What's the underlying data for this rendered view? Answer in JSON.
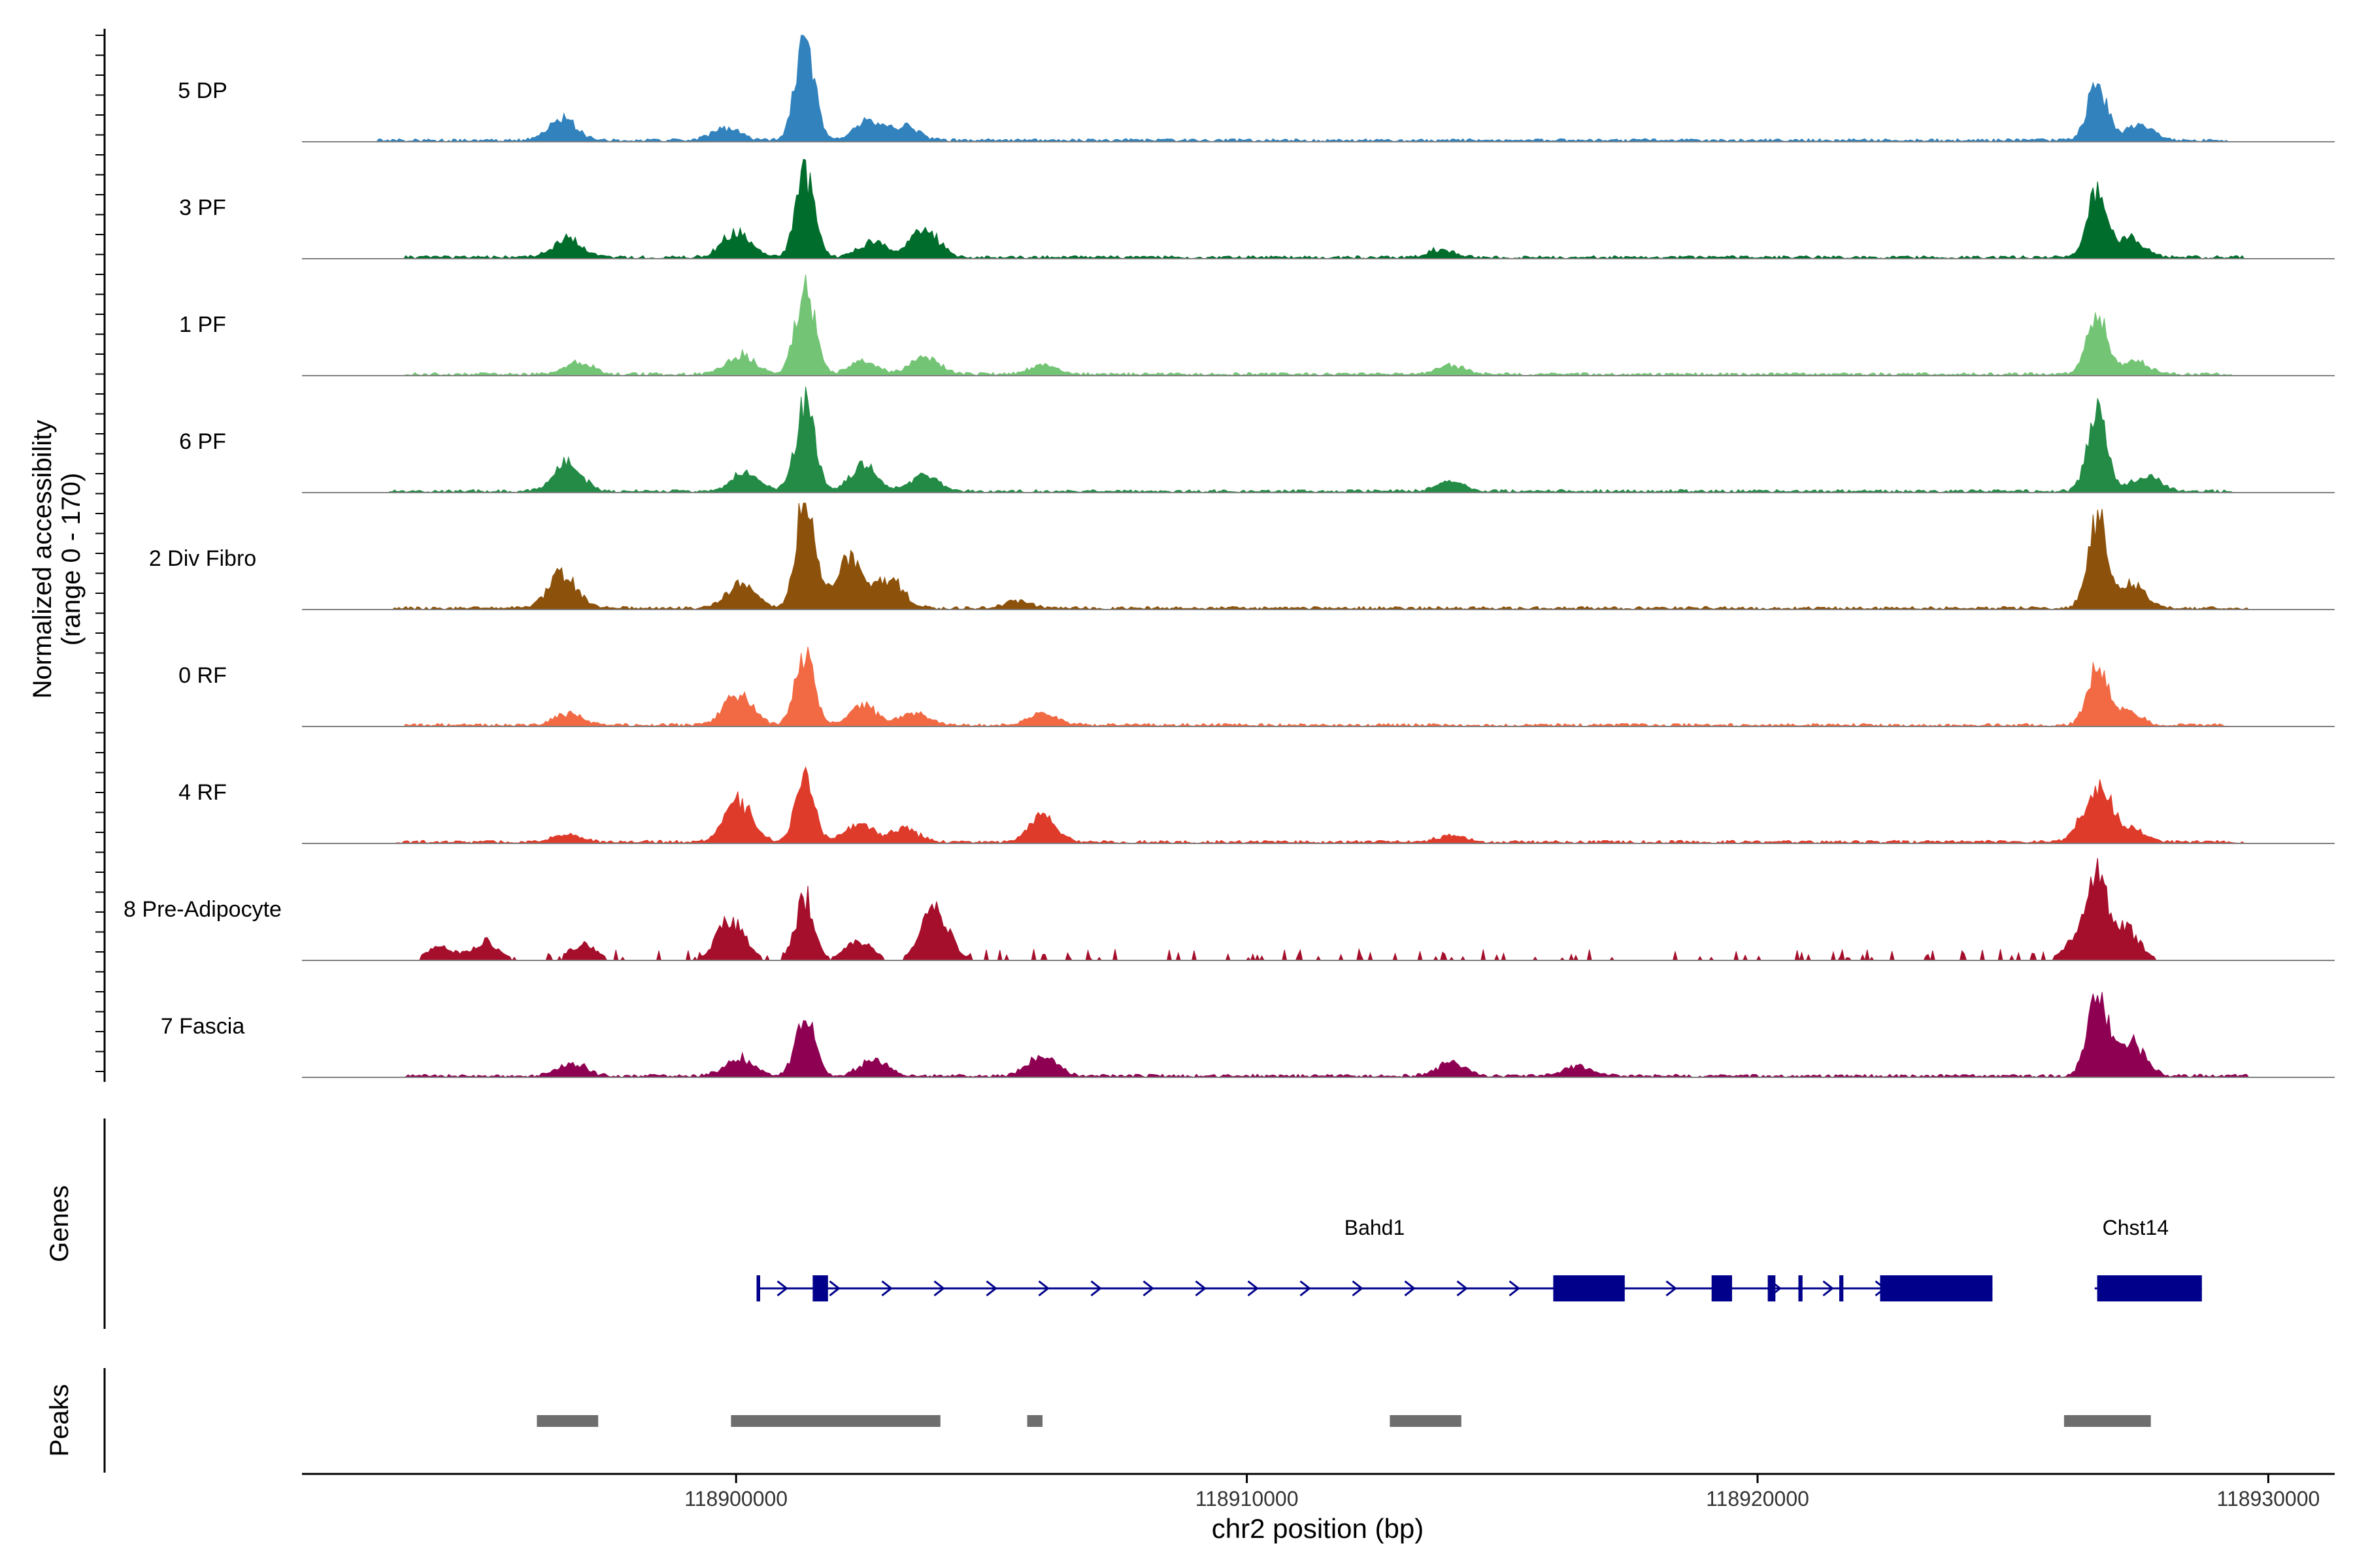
{
  "chart_data": {
    "type": "area",
    "title": "",
    "ylabel_line1": "Normalized accessibility",
    "ylabel_line2": "(range 0 - 170)",
    "yrange": [
      0,
      170
    ],
    "xlabel": "chr2 position (bp)",
    "xlim": [
      118891500,
      118931300
    ],
    "xticks": [
      118900000,
      118910000,
      118920000,
      118930000
    ],
    "xtick_labels": [
      "118900000",
      "118910000",
      "118920000",
      "118930000"
    ],
    "tracks": [
      {
        "name": "5 DP",
        "color": "#3182bd",
        "peaks": [
          [
            118896600,
            34
          ],
          [
            118899800,
            20
          ],
          [
            118901350,
            165
          ],
          [
            118902600,
            30
          ],
          [
            118903300,
            22
          ],
          [
            118926650,
            95
          ],
          [
            118927500,
            25
          ]
        ],
        "noise": [
          118893000,
          118929200
        ]
      },
      {
        "name": "3 PF",
        "color": "#006d2c",
        "peaks": [
          [
            118896700,
            30
          ],
          [
            118900000,
            40
          ],
          [
            118901350,
            130
          ],
          [
            118902700,
            25
          ],
          [
            118903700,
            45
          ],
          [
            118913800,
            12
          ],
          [
            118926650,
            110
          ],
          [
            118927300,
            30
          ]
        ],
        "noise": [
          118893500,
          118929500
        ]
      },
      {
        "name": "1 PF",
        "color": "#74c476",
        "peaks": [
          [
            118896900,
            20
          ],
          [
            118900100,
            32
          ],
          [
            118901350,
            145
          ],
          [
            118902500,
            22
          ],
          [
            118903700,
            30
          ],
          [
            118906000,
            15
          ],
          [
            118914000,
            14
          ],
          [
            118926650,
            100
          ],
          [
            118927400,
            20
          ]
        ],
        "noise": [
          118893500,
          118929300
        ]
      },
      {
        "name": "6 PF",
        "color": "#238b45",
        "peaks": [
          [
            118896700,
            45
          ],
          [
            118900200,
            30
          ],
          [
            118901350,
            140
          ],
          [
            118902500,
            40
          ],
          [
            118903700,
            25
          ],
          [
            118914000,
            15
          ],
          [
            118926650,
            125
          ],
          [
            118927600,
            25
          ]
        ],
        "noise": [
          118893200,
          118929300
        ]
      },
      {
        "name": "2 Div Fibro",
        "color": "#8c510a",
        "peaks": [
          [
            118896600,
            55
          ],
          [
            118900100,
            40
          ],
          [
            118901350,
            170
          ],
          [
            118902200,
            80
          ],
          [
            118903000,
            45
          ],
          [
            118905500,
            10
          ],
          [
            118926650,
            140
          ],
          [
            118927300,
            40
          ]
        ],
        "noise": [
          118893300,
          118929600
        ]
      },
      {
        "name": "0 RF",
        "color": "#f16a44",
        "peaks": [
          [
            118896700,
            18
          ],
          [
            118900050,
            50
          ],
          [
            118901350,
            120
          ],
          [
            118902500,
            30
          ],
          [
            118903500,
            20
          ],
          [
            118906000,
            18
          ],
          [
            118926650,
            95
          ],
          [
            118927200,
            25
          ]
        ],
        "noise": [
          118893500,
          118929300
        ]
      },
      {
        "name": "4 RF",
        "color": "#de3b2b",
        "peaks": [
          [
            118896700,
            12
          ],
          [
            118900050,
            65
          ],
          [
            118901350,
            100
          ],
          [
            118902400,
            30
          ],
          [
            118903300,
            20
          ],
          [
            118906000,
            40
          ],
          [
            118914000,
            12
          ],
          [
            118926650,
            90
          ],
          [
            118927300,
            20
          ]
        ],
        "noise": [
          118893300,
          118929600
        ]
      },
      {
        "name": "8 Pre-Adipocyte",
        "color": "#a50f2c",
        "peaks": [
          [
            118894200,
            20
          ],
          [
            118895100,
            30
          ],
          [
            118897000,
            25
          ],
          [
            118899900,
            65
          ],
          [
            118901350,
            100
          ],
          [
            118902400,
            30
          ],
          [
            118903900,
            80
          ],
          [
            118926300,
            40
          ],
          [
            118926650,
            120
          ],
          [
            118927200,
            50
          ]
        ],
        "noise": [
          118893800,
          118927800
        ],
        "sparse": true
      },
      {
        "name": "7 Fascia",
        "color": "#8e0152",
        "peaks": [
          [
            118896800,
            20
          ],
          [
            118900050,
            30
          ],
          [
            118901350,
            95
          ],
          [
            118902700,
            25
          ],
          [
            118906000,
            35
          ],
          [
            118914000,
            20
          ],
          [
            118916500,
            15
          ],
          [
            118926650,
            145
          ],
          [
            118927300,
            55
          ]
        ],
        "noise": [
          118893500,
          118929600
        ]
      }
    ],
    "genes_label": "Genes",
    "genes": [
      {
        "name": "Bahd1",
        "start": 118900400,
        "end": 118924600,
        "strand": "+",
        "exons": [
          [
            118900400,
            118900470
          ],
          [
            118901500,
            118901800
          ],
          [
            118916000,
            118917400
          ],
          [
            118919100,
            118919500
          ],
          [
            118920200,
            118920350
          ],
          [
            118920800,
            118920880
          ],
          [
            118921600,
            118921680
          ],
          [
            118922400,
            118924600
          ]
        ]
      },
      {
        "name": "Chst14",
        "start": 118926600,
        "end": 118928700,
        "strand": "+",
        "exons": [
          [
            118926650,
            118928700
          ]
        ]
      }
    ],
    "peaks_label": "Peaks",
    "peak_regions": [
      [
        118896100,
        118897300
      ],
      [
        118899900,
        118904000
      ],
      [
        118905700,
        118906000
      ],
      [
        118912800,
        118914200
      ],
      [
        118926000,
        118927700
      ]
    ]
  },
  "colors": {
    "gene": "#00008b",
    "peak": "#6e6e6e",
    "axis": "#000000",
    "baseline": "#7f7f7f"
  }
}
